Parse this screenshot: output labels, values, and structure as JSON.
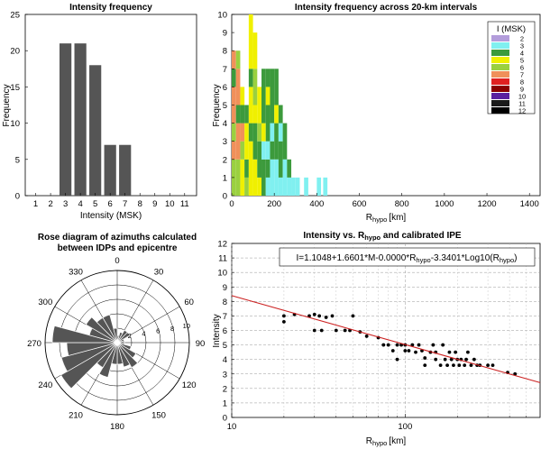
{
  "chart_data": [
    {
      "type": "bar",
      "title": "Intensity frequency",
      "xlabel": "Intensity (MSK)",
      "ylabel": "Frequency",
      "x_ticks": [
        "1",
        "2",
        "3",
        "4",
        "5",
        "6",
        "7",
        "8",
        "9",
        "10",
        "11"
      ],
      "y_ticks": [
        "0",
        "5",
        "10",
        "15",
        "20",
        "25"
      ],
      "ylim": [
        0,
        25
      ],
      "categories": [
        3,
        4,
        5,
        6,
        7
      ],
      "values": [
        21,
        21,
        18,
        7,
        7
      ],
      "bar_color": "#555555"
    },
    {
      "type": "bar",
      "title": "Intensity frequency across 20-km intervals",
      "xlabel_main": "R",
      "xlabel_sub": "hypo",
      "xlabel_unit": "[km]",
      "ylabel": "Frequency",
      "x_ticks": [
        "0",
        "200",
        "400",
        "600",
        "800",
        "1000",
        "1200",
        "1400"
      ],
      "y_ticks": [
        "0",
        "1",
        "2",
        "3",
        "4",
        "5",
        "6",
        "7",
        "8",
        "9",
        "10"
      ],
      "xlim": [
        0,
        1450
      ],
      "ylim": [
        0,
        10
      ],
      "legend_title": "I (MSK)",
      "legend_position": "top-right",
      "legend": [
        {
          "label": "2",
          "color": "#b39ddb"
        },
        {
          "label": "3",
          "color": "#80f0f0"
        },
        {
          "label": "4",
          "color": "#3c9a3c"
        },
        {
          "label": "5",
          "color": "#f0f000"
        },
        {
          "label": "6",
          "color": "#9ad040"
        },
        {
          "label": "7",
          "color": "#f0905a"
        },
        {
          "label": "8",
          "color": "#e02020"
        },
        {
          "label": "9",
          "color": "#8a0000"
        },
        {
          "label": "10",
          "color": "#5a20a0"
        },
        {
          "label": "11",
          "color": "#1a1a1a"
        },
        {
          "label": "12",
          "color": "#000000"
        }
      ],
      "bars": [
        {
          "x": 10,
          "w": 20,
          "segs": [
            [
              6,
              2
            ],
            [
              7,
              1
            ],
            [
              6,
              1
            ],
            [
              7,
              2
            ],
            [
              4,
              1
            ],
            [
              7,
              1
            ]
          ]
        },
        {
          "x": 30,
          "w": 20,
          "segs": [
            [
              6,
              2
            ],
            [
              7,
              2
            ],
            [
              4,
              1
            ],
            [
              7,
              2
            ],
            [
              6,
              1
            ]
          ]
        },
        {
          "x": 50,
          "w": 20,
          "segs": [
            [
              5,
              2
            ],
            [
              6,
              1
            ],
            [
              7,
              1
            ],
            [
              4,
              1
            ],
            [
              5,
              1
            ]
          ]
        },
        {
          "x": 70,
          "w": 20,
          "segs": [
            [
              6,
              1
            ],
            [
              4,
              1
            ],
            [
              5,
              2
            ],
            [
              4,
              1
            ]
          ]
        },
        {
          "x": 90,
          "w": 20,
          "segs": [
            [
              5,
              3
            ],
            [
              4,
              1
            ],
            [
              5,
              2
            ],
            [
              4,
              1
            ],
            [
              5,
              3
            ]
          ]
        },
        {
          "x": 110,
          "w": 20,
          "segs": [
            [
              5,
              2
            ],
            [
              4,
              2
            ],
            [
              5,
              1
            ],
            [
              6,
              2
            ],
            [
              5,
              2
            ]
          ]
        },
        {
          "x": 130,
          "w": 20,
          "segs": [
            [
              5,
              1
            ],
            [
              4,
              2
            ],
            [
              6,
              1
            ],
            [
              5,
              2
            ]
          ]
        },
        {
          "x": 150,
          "w": 20,
          "segs": [
            [
              4,
              2
            ],
            [
              3,
              1
            ],
            [
              5,
              1
            ],
            [
              4,
              3
            ]
          ]
        },
        {
          "x": 170,
          "w": 20,
          "segs": [
            [
              3,
              1
            ],
            [
              4,
              1
            ],
            [
              3,
              1
            ],
            [
              4,
              2
            ],
            [
              5,
              1
            ],
            [
              4,
              1
            ]
          ]
        },
        {
          "x": 190,
          "w": 20,
          "segs": [
            [
              3,
              2
            ],
            [
              4,
              1
            ],
            [
              3,
              1
            ],
            [
              4,
              3
            ]
          ]
        },
        {
          "x": 210,
          "w": 20,
          "segs": [
            [
              3,
              2
            ],
            [
              4,
              2
            ],
            [
              5,
              1
            ],
            [
              4,
              2
            ]
          ]
        },
        {
          "x": 230,
          "w": 20,
          "segs": [
            [
              3,
              1
            ],
            [
              4,
              2
            ],
            [
              3,
              1
            ],
            [
              4,
              1
            ]
          ]
        },
        {
          "x": 250,
          "w": 20,
          "segs": [
            [
              3,
              2
            ],
            [
              4,
              2
            ]
          ]
        },
        {
          "x": 270,
          "w": 20,
          "segs": [
            [
              3,
              1
            ],
            [
              4,
              1
            ]
          ]
        },
        {
          "x": 290,
          "w": 20,
          "segs": [
            [
              3,
              1
            ]
          ]
        },
        {
          "x": 310,
          "w": 20,
          "segs": [
            [
              3,
              1
            ]
          ]
        },
        {
          "x": 350,
          "w": 20,
          "segs": [
            [
              3,
              1
            ]
          ]
        },
        {
          "x": 410,
          "w": 20,
          "segs": [
            [
              3,
              1
            ]
          ]
        },
        {
          "x": 440,
          "w": 20,
          "segs": [
            [
              3,
              1
            ]
          ]
        }
      ]
    },
    {
      "type": "rose",
      "title_line1": "Rose diagram of azimuths calculated",
      "title_line2": "between  IDPs and epicentre",
      "angle_labels": [
        {
          "deg": 0,
          "label": "0"
        },
        {
          "deg": 30,
          "label": "30"
        },
        {
          "deg": 60,
          "label": "60"
        },
        {
          "deg": 90,
          "label": "90"
        },
        {
          "deg": 120,
          "label": "120"
        },
        {
          "deg": 150,
          "label": "150"
        },
        {
          "deg": 180,
          "label": "180"
        },
        {
          "deg": 210,
          "label": "210"
        },
        {
          "deg": 240,
          "label": "240"
        },
        {
          "deg": 270,
          "label": "270"
        },
        {
          "deg": 300,
          "label": "300"
        },
        {
          "deg": 330,
          "label": "330"
        }
      ],
      "radial_ticks": [
        "2",
        "4",
        "6",
        "8",
        "10"
      ],
      "rmax": 10,
      "petal_width_deg": 15,
      "petals": [
        {
          "a": 7.5,
          "r": 1
        },
        {
          "a": 22.5,
          "r": 1.5
        },
        {
          "a": 37.5,
          "r": 2
        },
        {
          "a": 52.5,
          "r": 2
        },
        {
          "a": 67.5,
          "r": 1
        },
        {
          "a": 82.5,
          "r": 1
        },
        {
          "a": 97.5,
          "r": 1
        },
        {
          "a": 112.5,
          "r": 2
        },
        {
          "a": 127.5,
          "r": 3
        },
        {
          "a": 142.5,
          "r": 4
        },
        {
          "a": 157.5,
          "r": 3.5
        },
        {
          "a": 172.5,
          "r": 3
        },
        {
          "a": 187.5,
          "r": 3
        },
        {
          "a": 202.5,
          "r": 5
        },
        {
          "a": 217.5,
          "r": 4
        },
        {
          "a": 232.5,
          "r": 9
        },
        {
          "a": 247.5,
          "r": 8
        },
        {
          "a": 262.5,
          "r": 7
        },
        {
          "a": 277.5,
          "r": 9
        },
        {
          "a": 292.5,
          "r": 4
        },
        {
          "a": 307.5,
          "r": 5
        },
        {
          "a": 322.5,
          "r": 4
        },
        {
          "a": 337.5,
          "r": 4
        },
        {
          "a": 352.5,
          "r": 2
        }
      ],
      "petal_color": "#555555"
    },
    {
      "type": "scatter",
      "title_pre": "Intensity vs. R",
      "title_sub": "hypo",
      "title_post": " and calibrated IPE",
      "xlabel_main": "R",
      "xlabel_sub": "hypo",
      "xlabel_unit": "[km]",
      "ylabel": "Intensity",
      "x_scale": "log",
      "xlim": [
        10,
        600
      ],
      "ylim": [
        0,
        12
      ],
      "x_ticks": [
        "10",
        "100"
      ],
      "y_ticks": [
        "0",
        "1",
        "2",
        "3",
        "4",
        "5",
        "6",
        "7",
        "8",
        "9",
        "10",
        "11",
        "12"
      ],
      "equation_pre": "I=1.1048+1.6601*M-0.0000*R",
      "equation_sub1": "hypo",
      "equation_mid": "-3.3401*Log10(R",
      "equation_sub2": "hypo",
      "equation_post": ")",
      "fit_line": {
        "x": [
          10,
          600
        ],
        "y": [
          8.4,
          2.4
        ],
        "color": "#cc2222"
      },
      "points": [
        [
          20,
          7.0
        ],
        [
          20,
          6.6
        ],
        [
          23,
          7.1
        ],
        [
          28,
          7.0
        ],
        [
          30,
          7.1
        ],
        [
          32,
          7.0
        ],
        [
          35,
          6.9
        ],
        [
          38,
          7.0
        ],
        [
          30,
          6.0
        ],
        [
          33,
          6.0
        ],
        [
          45,
          6.0
        ],
        [
          48,
          6.0
        ],
        [
          50,
          7.0
        ],
        [
          40,
          6.0
        ],
        [
          55,
          5.9
        ],
        [
          60,
          5.6
        ],
        [
          70,
          5.5
        ],
        [
          75,
          5.0
        ],
        [
          80,
          5.0
        ],
        [
          85,
          4.6
        ],
        [
          90,
          5.0
        ],
        [
          90,
          4.0
        ],
        [
          95,
          5.0
        ],
        [
          100,
          5.0
        ],
        [
          100,
          4.6
        ],
        [
          105,
          4.6
        ],
        [
          110,
          5.0
        ],
        [
          115,
          4.5
        ],
        [
          120,
          5.0
        ],
        [
          125,
          4.6
        ],
        [
          130,
          4.1
        ],
        [
          130,
          3.6
        ],
        [
          140,
          4.5
        ],
        [
          145,
          5.0
        ],
        [
          150,
          4.5
        ],
        [
          150,
          4.0
        ],
        [
          160,
          3.6
        ],
        [
          165,
          5.0
        ],
        [
          170,
          4.0
        ],
        [
          175,
          3.6
        ],
        [
          180,
          4.5
        ],
        [
          185,
          4.0
        ],
        [
          190,
          3.6
        ],
        [
          195,
          4.5
        ],
        [
          200,
          4.0
        ],
        [
          205,
          3.6
        ],
        [
          210,
          4.0
        ],
        [
          220,
          3.6
        ],
        [
          225,
          4.0
        ],
        [
          230,
          4.5
        ],
        [
          240,
          3.6
        ],
        [
          250,
          4.0
        ],
        [
          260,
          3.6
        ],
        [
          270,
          3.6
        ],
        [
          300,
          3.6
        ],
        [
          320,
          3.6
        ],
        [
          390,
          3.1
        ],
        [
          430,
          3.0
        ]
      ]
    }
  ]
}
